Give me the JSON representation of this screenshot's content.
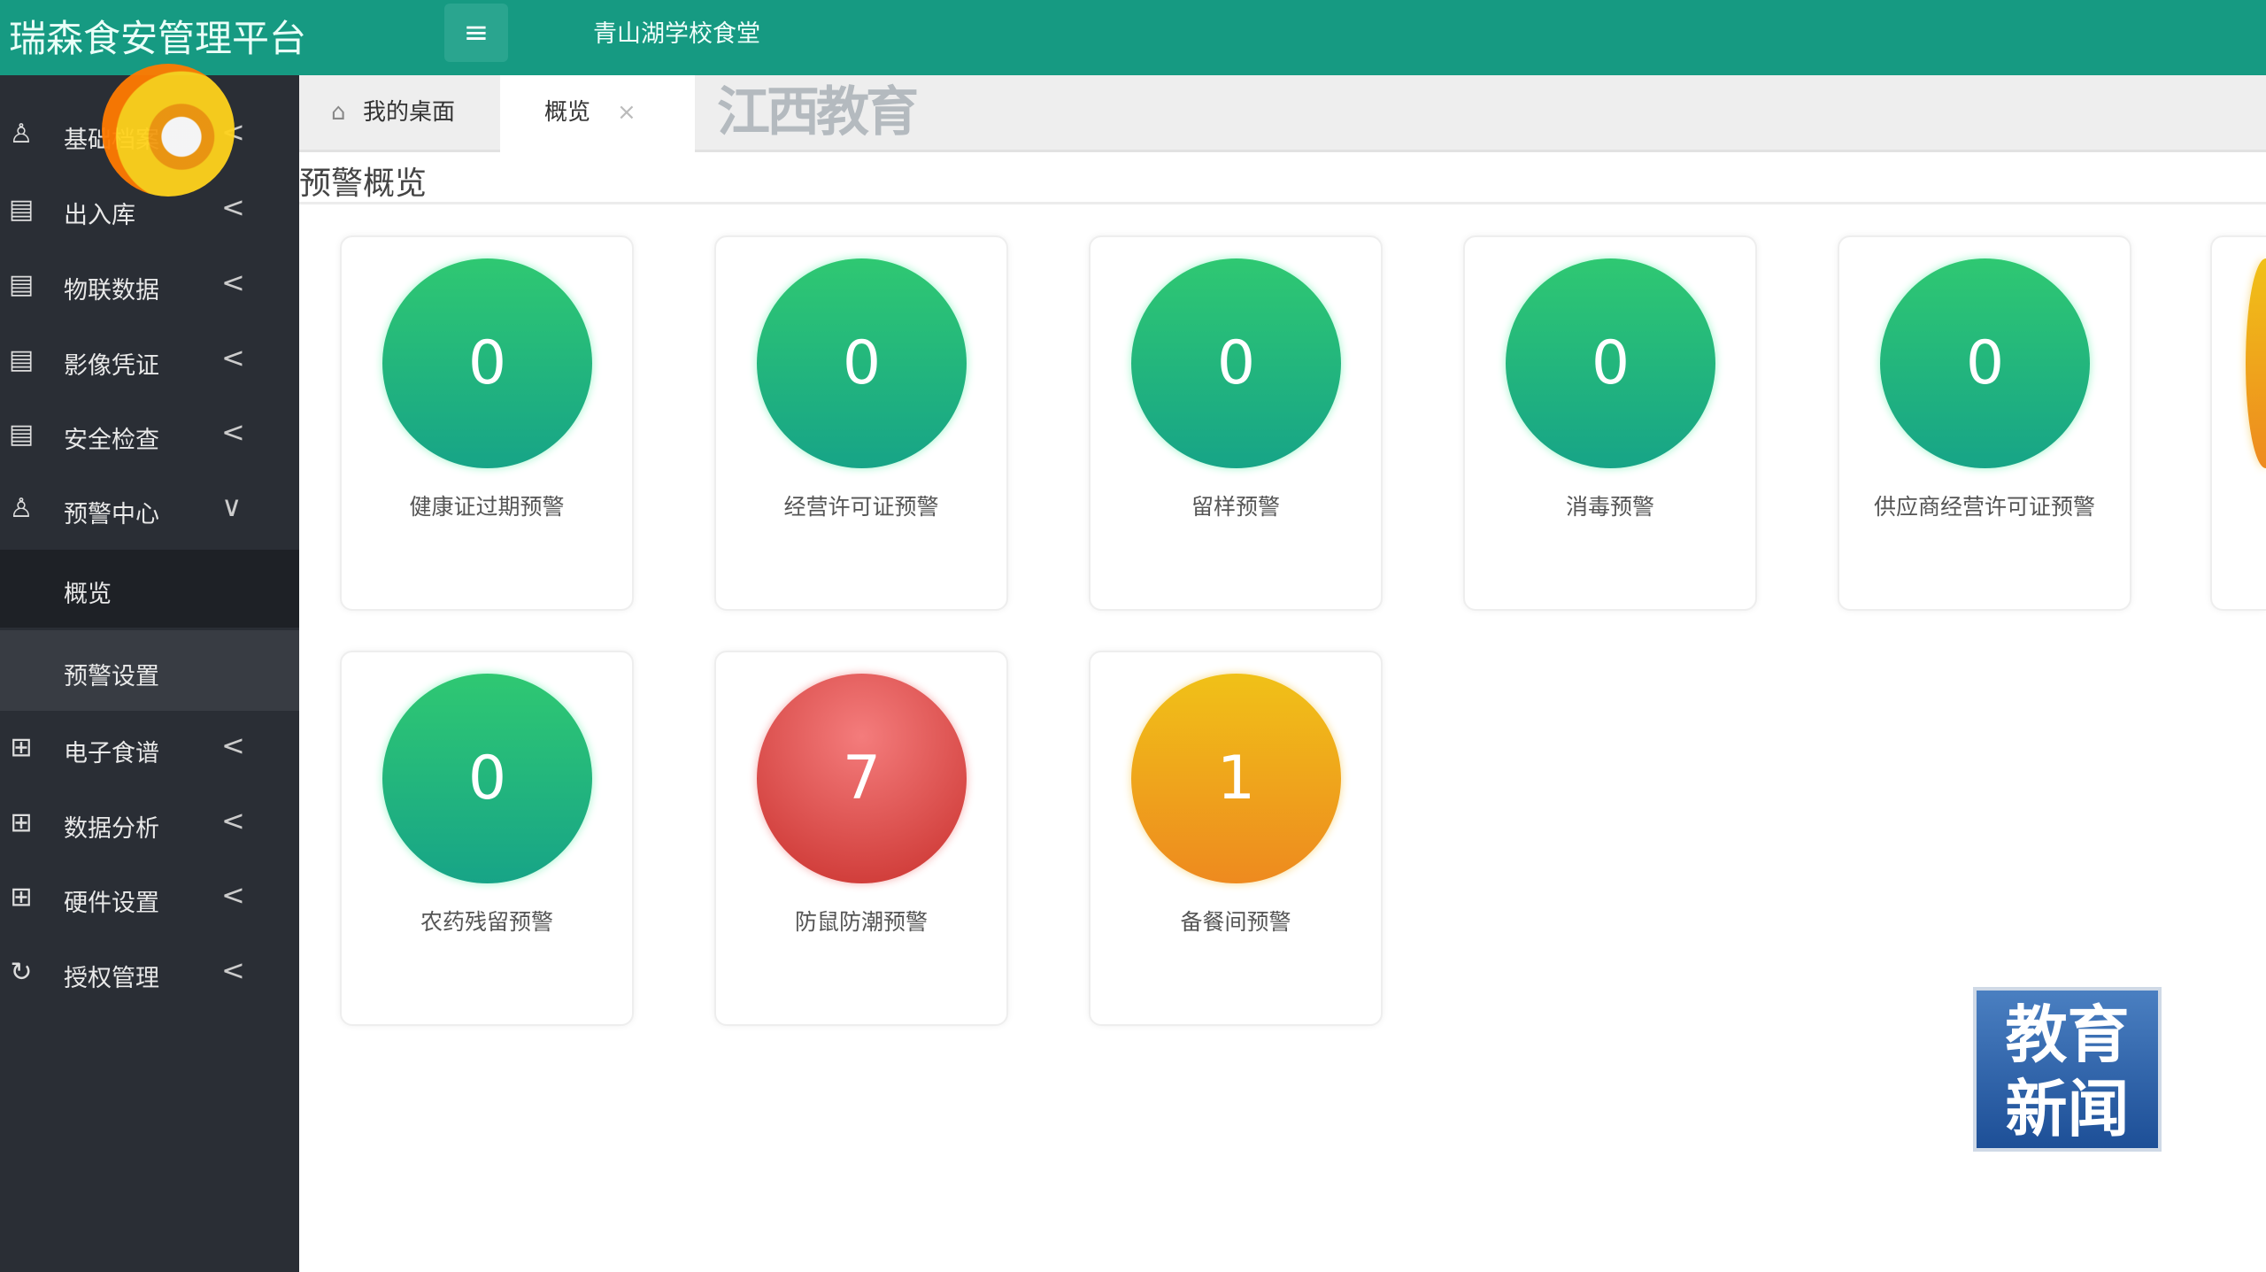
{
  "header": {
    "brand": "瑞森食安管理平台",
    "menu_icon": "hamburger-icon",
    "school": "青山湖学校食堂"
  },
  "sidebar": {
    "items": [
      {
        "label": "基础档案",
        "icon": "user-icon",
        "arrow": "<"
      },
      {
        "label": "出入库",
        "icon": "form-icon",
        "arrow": "<"
      },
      {
        "label": "物联数据",
        "icon": "form-icon",
        "arrow": "<"
      },
      {
        "label": "影像凭证",
        "icon": "form-icon",
        "arrow": "<"
      },
      {
        "label": "安全检查",
        "icon": "form-icon",
        "arrow": "<"
      },
      {
        "label": "预警中心",
        "icon": "user-icon",
        "arrow": "∨"
      },
      {
        "label": "概览"
      },
      {
        "label": "预警设置"
      },
      {
        "label": "电子食谱",
        "icon": "grid-icon",
        "arrow": "<"
      },
      {
        "label": "数据分析",
        "icon": "grid-icon",
        "arrow": "<"
      },
      {
        "label": "硬件设置",
        "icon": "grid-icon",
        "arrow": "<"
      },
      {
        "label": "授权管理",
        "icon": "refresh-icon",
        "arrow": "<"
      }
    ]
  },
  "tabs": [
    {
      "label": "我的桌面",
      "icon": "home-icon"
    },
    {
      "label": "概览",
      "close": "×"
    }
  ],
  "page_title": "预警概览",
  "cards": [
    {
      "value": "0",
      "label": "健康证过期预警",
      "status": "green"
    },
    {
      "value": "0",
      "label": "经营许可证预警",
      "status": "green"
    },
    {
      "value": "0",
      "label": "留样预警",
      "status": "green"
    },
    {
      "value": "0",
      "label": "消毒预警",
      "status": "green"
    },
    {
      "value": "0",
      "label": "供应商经营许可证预警",
      "status": "green"
    },
    {
      "value": "0",
      "label": "农药残留预警",
      "status": "green"
    },
    {
      "value": "7",
      "label": "防鼠防潮预警",
      "status": "red"
    },
    {
      "value": "1",
      "label": "备餐间预警",
      "status": "orange"
    }
  ],
  "watermark": {
    "logo_text": "江西教育",
    "badge_line1": "教育",
    "badge_line2": "新闻"
  },
  "colors": {
    "header": "#169a82",
    "sidebar": "#2a2e35",
    "green": "#2fc872",
    "red": "#d9413d",
    "orange": "#f0a51c"
  }
}
